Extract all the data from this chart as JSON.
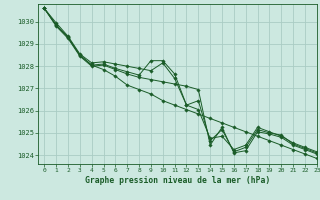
{
  "background_color": "#cce8e0",
  "grid_color": "#aaccc4",
  "line_color": "#1a5c28",
  "text_color": "#1a5c28",
  "xlabel": "Graphe pression niveau de la mer (hPa)",
  "xlim": [
    -0.5,
    23
  ],
  "ylim": [
    1023.6,
    1030.8
  ],
  "yticks": [
    1024,
    1025,
    1026,
    1027,
    1028,
    1029,
    1030
  ],
  "xticks": [
    0,
    1,
    2,
    3,
    4,
    5,
    6,
    7,
    8,
    9,
    10,
    11,
    12,
    13,
    14,
    15,
    16,
    17,
    18,
    19,
    20,
    21,
    22,
    23
  ],
  "series": [
    [
      1030.6,
      1029.8,
      1029.25,
      1028.45,
      1028.0,
      1028.05,
      1027.85,
      1027.65,
      1027.5,
      1027.4,
      1027.3,
      1027.2,
      1027.1,
      1026.95,
      1024.45,
      1025.25,
      1024.1,
      1024.2,
      1025.05,
      1024.95,
      1024.8,
      1024.45,
      1024.25,
      1024.05
    ],
    [
      1030.6,
      1029.85,
      1029.3,
      1028.5,
      1028.05,
      1028.1,
      1027.9,
      1027.75,
      1027.6,
      1028.25,
      1028.25,
      1027.65,
      1026.25,
      1026.05,
      1024.75,
      1024.85,
      1024.25,
      1024.45,
      1025.25,
      1025.05,
      1024.85,
      1024.55,
      1024.35,
      1024.15
    ],
    [
      1030.6,
      1029.85,
      1029.3,
      1028.5,
      1028.05,
      1027.85,
      1027.55,
      1027.15,
      1026.95,
      1026.75,
      1026.45,
      1026.25,
      1026.05,
      1025.85,
      1025.65,
      1025.45,
      1025.25,
      1025.05,
      1024.85,
      1024.65,
      1024.45,
      1024.25,
      1024.05,
      1023.85
    ],
    [
      1030.6,
      1029.95,
      1029.35,
      1028.55,
      1028.15,
      1028.2,
      1028.1,
      1028.0,
      1027.9,
      1027.8,
      1028.15,
      1027.45,
      1026.25,
      1026.45,
      1024.65,
      1025.15,
      1024.15,
      1024.35,
      1025.15,
      1025.0,
      1024.9,
      1024.5,
      1024.3,
      1024.1
    ]
  ]
}
